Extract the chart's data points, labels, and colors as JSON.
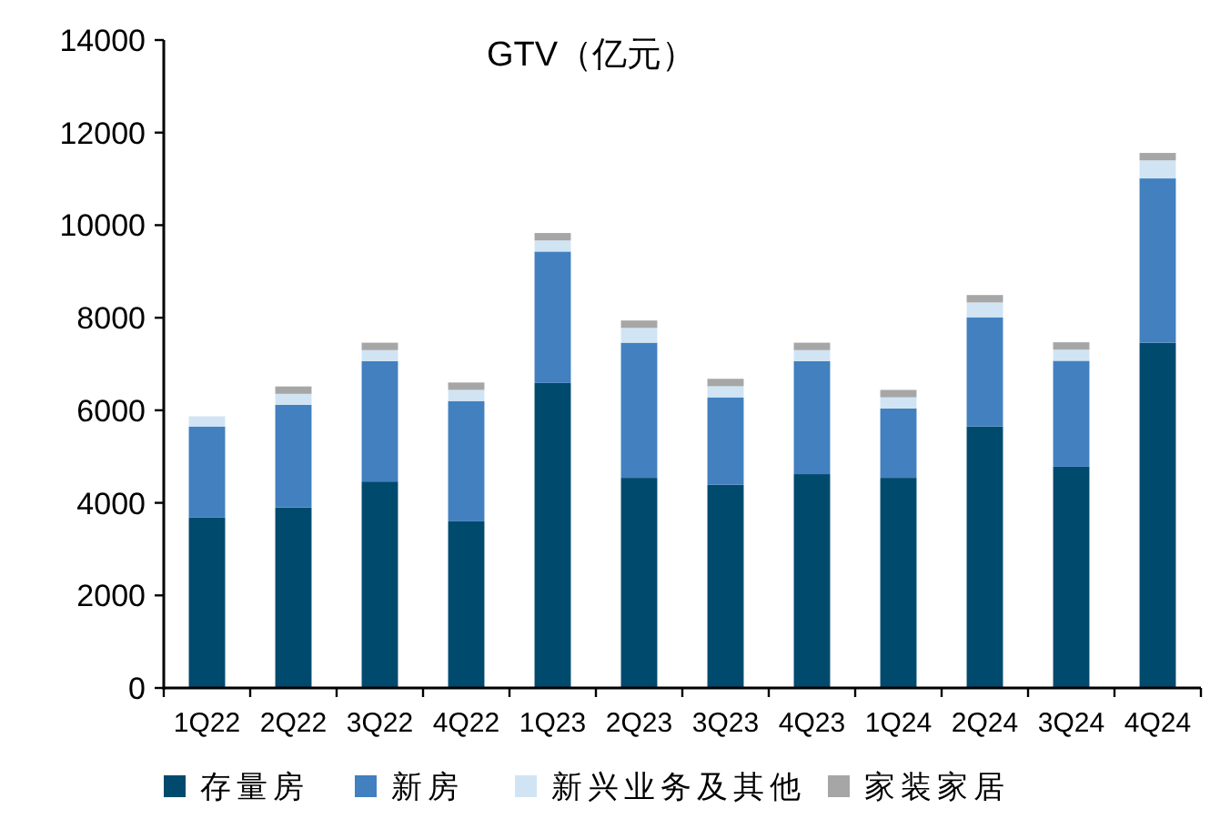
{
  "chart_data": {
    "type": "bar",
    "stacked": true,
    "title": "GTV（亿元）",
    "categories": [
      "1Q22",
      "2Q22",
      "3Q22",
      "4Q22",
      "1Q23",
      "2Q23",
      "3Q23",
      "4Q23",
      "1Q24",
      "2Q24",
      "3Q24",
      "4Q24"
    ],
    "series": [
      {
        "name": "存量房",
        "color": "#004a6e",
        "values": [
          3680,
          3900,
          4460,
          3600,
          6590,
          4540,
          4390,
          4620,
          4540,
          5650,
          4780,
          7460
        ]
      },
      {
        "name": "新房",
        "color": "#4280bf",
        "values": [
          1970,
          2220,
          2600,
          2600,
          2840,
          2920,
          1890,
          2440,
          1500,
          2360,
          2290,
          3550
        ]
      },
      {
        "name": "新兴业务及其他",
        "color": "#d0e4f4",
        "values": [
          220,
          235,
          240,
          240,
          240,
          320,
          240,
          240,
          240,
          320,
          240,
          390
        ]
      },
      {
        "name": "家装家居",
        "color": "#a6a6a6",
        "values": [
          0,
          160,
          160,
          160,
          160,
          160,
          160,
          160,
          160,
          160,
          160,
          160
        ]
      }
    ],
    "ylim": [
      0,
      14000
    ],
    "yticks": [
      0,
      2000,
      4000,
      6000,
      8000,
      10000,
      12000,
      14000
    ],
    "legend": "bottom"
  }
}
